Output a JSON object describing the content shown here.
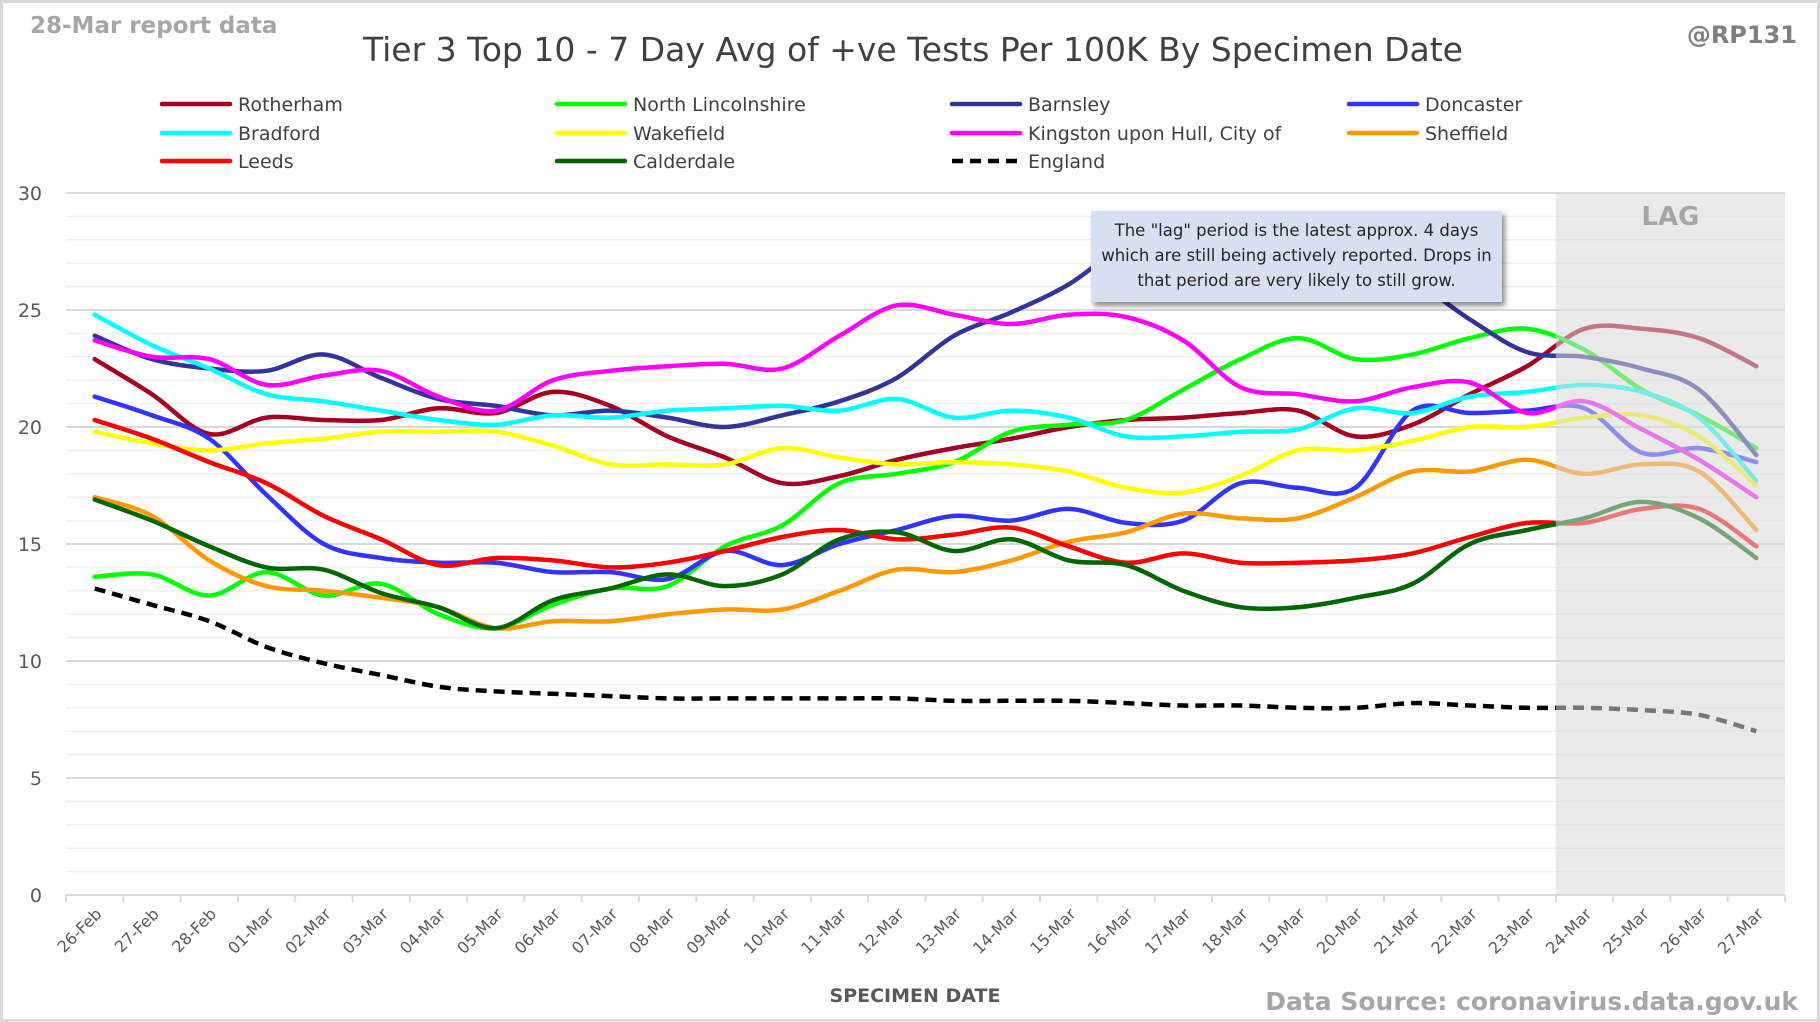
{
  "header": {
    "report_date": "28-Mar report data",
    "handle": "@RP131",
    "data_source": "Data Source: coronavirus.data.gov.uk"
  },
  "annotation": {
    "text": "The \"lag\" period is the latest approx. 4 days which are still being actively reported.  Drops in that period are very likely to still grow."
  },
  "chart_data": {
    "type": "line",
    "title": "Tier 3 Top 10 - 7 Day Avg of +ve Tests Per 100K By Specimen Date",
    "xlabel": "SPECIMEN DATE",
    "ylabel": "",
    "ylim": [
      0,
      30
    ],
    "yticks": [
      0,
      5,
      10,
      15,
      20,
      25,
      30
    ],
    "grid": true,
    "legend_position": "top",
    "smoothed": true,
    "categories": [
      "26-Feb",
      "27-Feb",
      "28-Feb",
      "01-Mar",
      "02-Mar",
      "03-Mar",
      "04-Mar",
      "05-Mar",
      "06-Mar",
      "07-Mar",
      "08-Mar",
      "09-Mar",
      "10-Mar",
      "11-Mar",
      "12-Mar",
      "13-Mar",
      "14-Mar",
      "15-Mar",
      "16-Mar",
      "17-Mar",
      "18-Mar",
      "19-Mar",
      "20-Mar",
      "21-Mar",
      "22-Mar",
      "23-Mar",
      "24-Mar",
      "25-Mar",
      "26-Mar",
      "27-Mar"
    ],
    "shaded_region": {
      "label": "LAG",
      "from": "24-Mar",
      "to": "27-Mar",
      "color": "#e6e6e6"
    },
    "series": [
      {
        "name": "Rotherham",
        "color": "#a50021",
        "dashed": false,
        "values": [
          22.9,
          21.4,
          19.7,
          20.4,
          20.3,
          20.3,
          20.8,
          20.6,
          21.5,
          20.9,
          19.6,
          18.7,
          17.6,
          17.9,
          18.6,
          19.1,
          19.5,
          20.0,
          20.3,
          20.4,
          20.6,
          20.7,
          19.6,
          20.1,
          21.4,
          22.6,
          24.2,
          24.2,
          23.8,
          22.6
        ]
      },
      {
        "name": "North Lincolnshire",
        "color": "#00ff00",
        "dashed": false,
        "values": [
          13.6,
          13.7,
          12.8,
          13.8,
          12.8,
          13.3,
          12.0,
          11.4,
          12.4,
          13.1,
          13.2,
          14.9,
          15.8,
          17.6,
          18.0,
          18.5,
          19.8,
          20.1,
          20.3,
          21.6,
          22.9,
          23.8,
          22.9,
          23.1,
          23.8,
          24.2,
          23.3,
          21.6,
          20.5,
          19.1
        ]
      },
      {
        "name": "Barnsley",
        "color": "#333399",
        "dashed": false,
        "values": [
          23.9,
          22.9,
          22.5,
          22.4,
          23.1,
          22.1,
          21.2,
          20.9,
          20.5,
          20.7,
          20.4,
          20.0,
          20.5,
          21.1,
          22.1,
          23.9,
          24.9,
          26.1,
          27.8,
          28.6,
          28.9,
          28.4,
          27.4,
          26.3,
          24.6,
          23.2,
          23.0,
          22.5,
          21.6,
          18.8
        ]
      },
      {
        "name": "Doncaster",
        "color": "#3333ff",
        "dashed": false,
        "values": [
          21.3,
          20.5,
          19.5,
          17.1,
          15.0,
          14.4,
          14.2,
          14.2,
          13.8,
          13.8,
          13.5,
          14.7,
          14.1,
          15.0,
          15.6,
          16.2,
          16.0,
          16.5,
          15.9,
          16.0,
          17.6,
          17.4,
          17.4,
          20.7,
          20.6,
          20.7,
          20.8,
          18.9,
          19.1,
          18.5
        ]
      },
      {
        "name": "Bradford",
        "color": "#00ffff",
        "dashed": false,
        "values": [
          24.8,
          23.5,
          22.5,
          21.4,
          21.1,
          20.7,
          20.3,
          20.1,
          20.5,
          20.4,
          20.7,
          20.8,
          20.9,
          20.7,
          21.2,
          20.4,
          20.7,
          20.4,
          19.6,
          19.6,
          19.8,
          19.9,
          20.8,
          20.6,
          21.3,
          21.5,
          21.8,
          21.5,
          20.4,
          17.7
        ]
      },
      {
        "name": "Wakefield",
        "color": "#ffff00",
        "dashed": false,
        "values": [
          19.8,
          19.3,
          19.0,
          19.3,
          19.5,
          19.8,
          19.8,
          19.8,
          19.2,
          18.4,
          18.4,
          18.4,
          19.1,
          18.7,
          18.4,
          18.5,
          18.4,
          18.1,
          17.4,
          17.2,
          17.9,
          19.0,
          19.0,
          19.4,
          20.0,
          20.0,
          20.4,
          20.5,
          19.6,
          17.5
        ]
      },
      {
        "name": "Kingston upon Hull, City of",
        "color": "#ff00ff",
        "dashed": false,
        "values": [
          23.7,
          23.0,
          22.9,
          21.8,
          22.2,
          22.4,
          21.3,
          20.7,
          22.0,
          22.4,
          22.6,
          22.7,
          22.5,
          23.9,
          25.2,
          24.8,
          24.4,
          24.8,
          24.7,
          23.7,
          21.7,
          21.4,
          21.1,
          21.7,
          21.9,
          20.6,
          21.1,
          19.9,
          18.6,
          17.0
        ]
      },
      {
        "name": "Sheffield",
        "color": "#ff9900",
        "dashed": false,
        "values": [
          17.0,
          16.2,
          14.3,
          13.2,
          13.0,
          12.7,
          12.3,
          11.4,
          11.7,
          11.7,
          12.0,
          12.2,
          12.2,
          13.0,
          13.9,
          13.8,
          14.3,
          15.1,
          15.5,
          16.3,
          16.1,
          16.1,
          17.0,
          18.1,
          18.1,
          18.6,
          18.0,
          18.4,
          18.1,
          15.6
        ]
      },
      {
        "name": "Leeds",
        "color": "#ff0000",
        "dashed": false,
        "values": [
          20.3,
          19.5,
          18.5,
          17.6,
          16.2,
          15.2,
          14.1,
          14.4,
          14.3,
          14.0,
          14.2,
          14.7,
          15.3,
          15.6,
          15.2,
          15.4,
          15.7,
          14.9,
          14.2,
          14.6,
          14.2,
          14.2,
          14.3,
          14.6,
          15.3,
          15.9,
          15.9,
          16.5,
          16.5,
          14.9
        ]
      },
      {
        "name": "Calderdale",
        "color": "#006600",
        "dashed": false,
        "values": [
          16.9,
          16.0,
          14.9,
          14.0,
          13.9,
          12.9,
          12.3,
          11.4,
          12.6,
          13.1,
          13.7,
          13.2,
          13.7,
          15.2,
          15.5,
          14.7,
          15.2,
          14.3,
          14.1,
          13.0,
          12.3,
          12.3,
          12.7,
          13.3,
          15.0,
          15.6,
          16.1,
          16.8,
          16.1,
          14.4
        ]
      },
      {
        "name": "England",
        "color": "#000000",
        "dashed": true,
        "values": [
          13.1,
          12.4,
          11.7,
          10.6,
          9.9,
          9.4,
          8.9,
          8.7,
          8.6,
          8.5,
          8.4,
          8.4,
          8.4,
          8.4,
          8.4,
          8.3,
          8.3,
          8.3,
          8.2,
          8.1,
          8.1,
          8.0,
          8.0,
          8.2,
          8.1,
          8.0,
          8.0,
          7.9,
          7.7,
          7.0
        ]
      }
    ]
  }
}
